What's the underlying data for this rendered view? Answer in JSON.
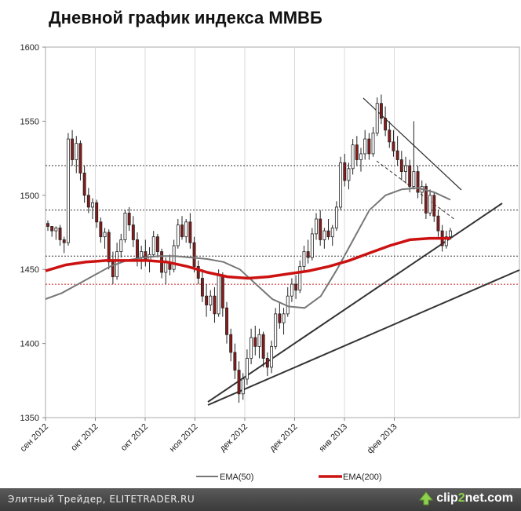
{
  "chart_data": {
    "type": "candlestick",
    "title": "Дневной график индекса ММВБ",
    "ylim": [
      1350,
      1600
    ],
    "yticks": [
      1350,
      1400,
      1450,
      1500,
      1550,
      1600
    ],
    "xtick_labels": [
      "сен 2012",
      "окт 2012",
      "окт 2012",
      "ноя 2012",
      "дек 2012",
      "дек 2012",
      "янв 2013",
      "фев 2013"
    ],
    "horizontal_levels": [
      {
        "value": 1520,
        "color": "#333333",
        "style": "dotted"
      },
      {
        "value": 1490,
        "color": "#333333",
        "style": "dotted"
      },
      {
        "value": 1459,
        "color": "#333333",
        "style": "dotted"
      },
      {
        "value": 1440,
        "color": "#cc2222",
        "style": "dotted"
      }
    ],
    "candles": [
      [
        1481,
        1483,
        1476,
        1479
      ],
      [
        1479,
        1479,
        1472,
        1476
      ],
      [
        1476,
        1479,
        1470,
        1478
      ],
      [
        1478,
        1480,
        1466,
        1470
      ],
      [
        1470,
        1472,
        1461,
        1468
      ],
      [
        1468,
        1542,
        1466,
        1538
      ],
      [
        1538,
        1544,
        1520,
        1524
      ],
      [
        1524,
        1540,
        1515,
        1535
      ],
      [
        1535,
        1537,
        1510,
        1515
      ],
      [
        1515,
        1520,
        1495,
        1500
      ],
      [
        1500,
        1505,
        1488,
        1492
      ],
      [
        1492,
        1498,
        1484,
        1495
      ],
      [
        1495,
        1497,
        1478,
        1482
      ],
      [
        1482,
        1485,
        1468,
        1472
      ],
      [
        1472,
        1478,
        1464,
        1475
      ],
      [
        1475,
        1477,
        1450,
        1455
      ],
      [
        1455,
        1462,
        1440,
        1445
      ],
      [
        1445,
        1468,
        1443,
        1462
      ],
      [
        1462,
        1474,
        1458,
        1470
      ],
      [
        1470,
        1490,
        1468,
        1488
      ],
      [
        1488,
        1492,
        1476,
        1480
      ],
      [
        1480,
        1486,
        1465,
        1470
      ],
      [
        1470,
        1475,
        1452,
        1458
      ],
      [
        1458,
        1466,
        1450,
        1462
      ],
      [
        1462,
        1470,
        1452,
        1456
      ],
      [
        1456,
        1465,
        1448,
        1460
      ],
      [
        1460,
        1476,
        1458,
        1472
      ],
      [
        1472,
        1474,
        1458,
        1462
      ],
      [
        1462,
        1464,
        1444,
        1448
      ],
      [
        1448,
        1458,
        1440,
        1455
      ],
      [
        1455,
        1460,
        1446,
        1450
      ],
      [
        1450,
        1470,
        1448,
        1466
      ],
      [
        1466,
        1484,
        1464,
        1480
      ],
      [
        1480,
        1486,
        1470,
        1472
      ],
      [
        1472,
        1484,
        1468,
        1482
      ],
      [
        1482,
        1488,
        1464,
        1468
      ],
      [
        1468,
        1472,
        1448,
        1452
      ],
      [
        1452,
        1456,
        1440,
        1444
      ],
      [
        1444,
        1450,
        1428,
        1432
      ],
      [
        1432,
        1440,
        1418,
        1426
      ],
      [
        1426,
        1436,
        1422,
        1432
      ],
      [
        1432,
        1438,
        1414,
        1420
      ],
      [
        1420,
        1450,
        1418,
        1446
      ],
      [
        1446,
        1448,
        1418,
        1424
      ],
      [
        1424,
        1428,
        1400,
        1406
      ],
      [
        1406,
        1410,
        1388,
        1394
      ],
      [
        1394,
        1400,
        1376,
        1382
      ],
      [
        1382,
        1388,
        1360,
        1366
      ],
      [
        1366,
        1380,
        1362,
        1376
      ],
      [
        1376,
        1396,
        1372,
        1390
      ],
      [
        1390,
        1410,
        1386,
        1404
      ],
      [
        1404,
        1412,
        1392,
        1398
      ],
      [
        1398,
        1410,
        1390,
        1406
      ],
      [
        1406,
        1408,
        1384,
        1390
      ],
      [
        1390,
        1394,
        1378,
        1384
      ],
      [
        1384,
        1402,
        1380,
        1398
      ],
      [
        1398,
        1424,
        1396,
        1420
      ],
      [
        1420,
        1428,
        1410,
        1414
      ],
      [
        1414,
        1424,
        1406,
        1420
      ],
      [
        1420,
        1438,
        1418,
        1432
      ],
      [
        1432,
        1444,
        1428,
        1440
      ],
      [
        1440,
        1446,
        1430,
        1436
      ],
      [
        1436,
        1456,
        1434,
        1452
      ],
      [
        1452,
        1466,
        1448,
        1462
      ],
      [
        1462,
        1470,
        1454,
        1458
      ],
      [
        1458,
        1478,
        1456,
        1474
      ],
      [
        1474,
        1488,
        1470,
        1484
      ],
      [
        1484,
        1490,
        1466,
        1470
      ],
      [
        1470,
        1478,
        1464,
        1476
      ],
      [
        1476,
        1484,
        1470,
        1472
      ],
      [
        1472,
        1480,
        1466,
        1478
      ],
      [
        1478,
        1496,
        1476,
        1492
      ],
      [
        1492,
        1526,
        1490,
        1522
      ],
      [
        1522,
        1528,
        1506,
        1510
      ],
      [
        1510,
        1522,
        1504,
        1518
      ],
      [
        1518,
        1538,
        1514,
        1534
      ],
      [
        1534,
        1540,
        1520,
        1524
      ],
      [
        1524,
        1532,
        1516,
        1528
      ],
      [
        1528,
        1544,
        1524,
        1538
      ],
      [
        1538,
        1542,
        1524,
        1528
      ],
      [
        1528,
        1546,
        1526,
        1542
      ],
      [
        1542,
        1566,
        1540,
        1562
      ],
      [
        1562,
        1568,
        1548,
        1552
      ],
      [
        1552,
        1560,
        1540,
        1544
      ],
      [
        1544,
        1550,
        1532,
        1536
      ],
      [
        1536,
        1544,
        1526,
        1530
      ],
      [
        1530,
        1540,
        1520,
        1524
      ],
      [
        1524,
        1530,
        1510,
        1516
      ],
      [
        1516,
        1526,
        1508,
        1520
      ],
      [
        1520,
        1524,
        1502,
        1506
      ],
      [
        1506,
        1550,
        1504,
        1516
      ],
      [
        1516,
        1520,
        1498,
        1502
      ],
      [
        1502,
        1510,
        1494,
        1506
      ],
      [
        1506,
        1508,
        1484,
        1488
      ],
      [
        1488,
        1504,
        1486,
        1500
      ],
      [
        1500,
        1502,
        1482,
        1486
      ],
      [
        1486,
        1490,
        1472,
        1476
      ],
      [
        1476,
        1480,
        1462,
        1466
      ],
      [
        1466,
        1476,
        1464,
        1472
      ],
      [
        1472,
        1478,
        1470,
        1476
      ]
    ],
    "ema50": [
      1430,
      1434,
      1440,
      1446,
      1452,
      1456,
      1458,
      1459,
      1459,
      1458,
      1457,
      1455,
      1450,
      1440,
      1430,
      1425,
      1424,
      1432,
      1450,
      1470,
      1490,
      1500,
      1504,
      1505,
      1502,
      1497
    ],
    "ema200": [
      1449,
      1453,
      1455,
      1456,
      1456,
      1456,
      1455,
      1452,
      1448,
      1445,
      1444,
      1445,
      1447,
      1449,
      1452,
      1456,
      1461,
      1466,
      1470,
      1471,
      1471
    ],
    "legend": [
      {
        "label": "EMA(50)",
        "color": "#777777"
      },
      {
        "label": "EMA(200)",
        "color": "#cc1111"
      }
    ]
  },
  "footer": {
    "caption": "Элитный Трейдер, ELITETRADER.RU",
    "logo_a": "clip",
    "logo_b": "2",
    "logo_c": "net.com"
  }
}
